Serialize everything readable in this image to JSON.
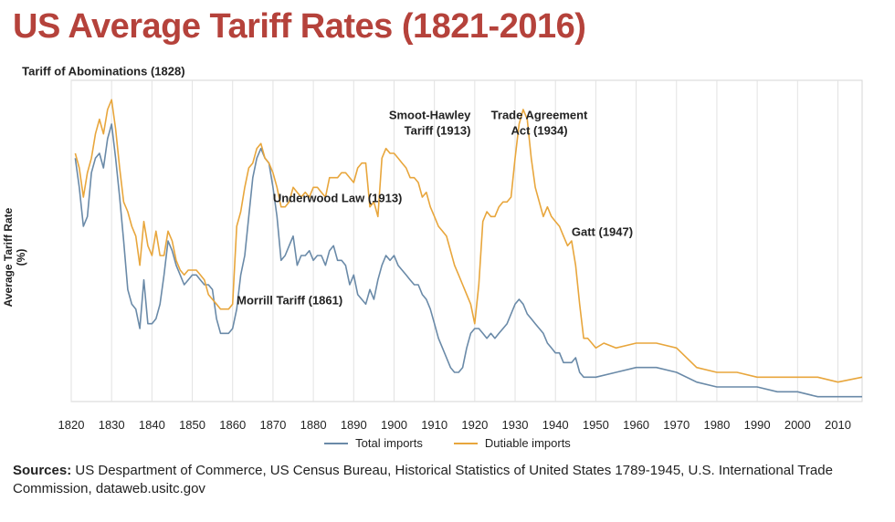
{
  "chart_data": {
    "type": "line",
    "title": "US Average Tariff Rates (1821-2016)",
    "ylabel": "Average Tariff Rate (%)",
    "xlabel": "",
    "xlim": [
      1820,
      2016
    ],
    "ylim": [
      0,
      66
    ],
    "x_ticks": [
      "1820",
      "1830",
      "1840",
      "1850",
      "1860",
      "1870",
      "1880",
      "1890",
      "1900",
      "1910",
      "1920",
      "1930",
      "1940",
      "1950",
      "1960",
      "1970",
      "1980",
      "1990",
      "2000",
      "2010"
    ],
    "grid": "vertical",
    "legend_position": "bottom",
    "series": [
      {
        "name": "Total imports",
        "color": "#6a8aa8",
        "points": [
          [
            1821,
            50
          ],
          [
            1822,
            44
          ],
          [
            1823,
            36
          ],
          [
            1824,
            38
          ],
          [
            1825,
            47
          ],
          [
            1826,
            50
          ],
          [
            1827,
            51
          ],
          [
            1828,
            48
          ],
          [
            1829,
            54
          ],
          [
            1830,
            57
          ],
          [
            1831,
            50
          ],
          [
            1832,
            42
          ],
          [
            1833,
            33
          ],
          [
            1834,
            23
          ],
          [
            1835,
            20
          ],
          [
            1836,
            19
          ],
          [
            1837,
            15
          ],
          [
            1838,
            25
          ],
          [
            1839,
            16
          ],
          [
            1840,
            16
          ],
          [
            1841,
            17
          ],
          [
            1842,
            20
          ],
          [
            1843,
            26
          ],
          [
            1844,
            33
          ],
          [
            1845,
            31
          ],
          [
            1846,
            28
          ],
          [
            1847,
            26
          ],
          [
            1848,
            24
          ],
          [
            1849,
            25
          ],
          [
            1850,
            26
          ],
          [
            1851,
            26
          ],
          [
            1852,
            25
          ],
          [
            1853,
            24
          ],
          [
            1854,
            24
          ],
          [
            1855,
            23
          ],
          [
            1856,
            17
          ],
          [
            1857,
            14
          ],
          [
            1858,
            14
          ],
          [
            1859,
            14
          ],
          [
            1860,
            15
          ],
          [
            1861,
            19
          ],
          [
            1862,
            26
          ],
          [
            1863,
            30
          ],
          [
            1864,
            38
          ],
          [
            1865,
            46
          ],
          [
            1866,
            50
          ],
          [
            1867,
            52
          ],
          [
            1868,
            50
          ],
          [
            1869,
            49
          ],
          [
            1870,
            44
          ],
          [
            1871,
            38
          ],
          [
            1872,
            29
          ],
          [
            1873,
            30
          ],
          [
            1874,
            32
          ],
          [
            1875,
            34
          ],
          [
            1876,
            28
          ],
          [
            1877,
            30
          ],
          [
            1878,
            30
          ],
          [
            1879,
            31
          ],
          [
            1880,
            29
          ],
          [
            1881,
            30
          ],
          [
            1882,
            30
          ],
          [
            1883,
            28
          ],
          [
            1884,
            31
          ],
          [
            1885,
            32
          ],
          [
            1886,
            29
          ],
          [
            1887,
            29
          ],
          [
            1888,
            28
          ],
          [
            1889,
            24
          ],
          [
            1890,
            26
          ],
          [
            1891,
            22
          ],
          [
            1892,
            21
          ],
          [
            1893,
            20
          ],
          [
            1894,
            23
          ],
          [
            1895,
            21
          ],
          [
            1896,
            25
          ],
          [
            1897,
            28
          ],
          [
            1898,
            30
          ],
          [
            1899,
            29
          ],
          [
            1900,
            30
          ],
          [
            1901,
            28
          ],
          [
            1902,
            27
          ],
          [
            1903,
            26
          ],
          [
            1904,
            25
          ],
          [
            1905,
            24
          ],
          [
            1906,
            24
          ],
          [
            1907,
            22
          ],
          [
            1908,
            21
          ],
          [
            1909,
            19
          ],
          [
            1910,
            16
          ],
          [
            1911,
            13
          ],
          [
            1912,
            11
          ],
          [
            1913,
            9
          ],
          [
            1914,
            7
          ],
          [
            1915,
            6
          ],
          [
            1916,
            6
          ],
          [
            1917,
            7
          ],
          [
            1918,
            11
          ],
          [
            1919,
            14
          ],
          [
            1920,
            15
          ],
          [
            1921,
            15
          ],
          [
            1922,
            14
          ],
          [
            1923,
            13
          ],
          [
            1924,
            14
          ],
          [
            1925,
            13
          ],
          [
            1926,
            14
          ],
          [
            1927,
            15
          ],
          [
            1928,
            16
          ],
          [
            1929,
            18
          ],
          [
            1930,
            20
          ],
          [
            1931,
            21
          ],
          [
            1932,
            20
          ],
          [
            1933,
            18
          ],
          [
            1934,
            17
          ],
          [
            1935,
            16
          ],
          [
            1936,
            15
          ],
          [
            1937,
            14
          ],
          [
            1938,
            12
          ],
          [
            1939,
            11
          ],
          [
            1940,
            10
          ],
          [
            1941,
            10
          ],
          [
            1942,
            8
          ],
          [
            1943,
            8
          ],
          [
            1944,
            8
          ],
          [
            1945,
            9
          ],
          [
            1946,
            6
          ],
          [
            1947,
            5
          ],
          [
            1948,
            5
          ],
          [
            1950,
            5
          ],
          [
            1955,
            6
          ],
          [
            1960,
            7
          ],
          [
            1965,
            7
          ],
          [
            1970,
            6
          ],
          [
            1975,
            4
          ],
          [
            1980,
            3
          ],
          [
            1985,
            3
          ],
          [
            1990,
            3
          ],
          [
            1995,
            2
          ],
          [
            2000,
            2
          ],
          [
            2005,
            1
          ],
          [
            2010,
            1
          ],
          [
            2016,
            1
          ]
        ]
      },
      {
        "name": "Dutiable imports",
        "color": "#e8a63c",
        "points": [
          [
            1821,
            51
          ],
          [
            1822,
            48
          ],
          [
            1823,
            42
          ],
          [
            1824,
            47
          ],
          [
            1825,
            50
          ],
          [
            1826,
            55
          ],
          [
            1827,
            58
          ],
          [
            1828,
            55
          ],
          [
            1829,
            60
          ],
          [
            1830,
            62
          ],
          [
            1831,
            56
          ],
          [
            1832,
            48
          ],
          [
            1833,
            41
          ],
          [
            1834,
            39
          ],
          [
            1835,
            36
          ],
          [
            1836,
            34
          ],
          [
            1837,
            28
          ],
          [
            1838,
            37
          ],
          [
            1839,
            32
          ],
          [
            1840,
            30
          ],
          [
            1841,
            35
          ],
          [
            1842,
            30
          ],
          [
            1843,
            30
          ],
          [
            1844,
            35
          ],
          [
            1845,
            33
          ],
          [
            1846,
            29
          ],
          [
            1847,
            27
          ],
          [
            1848,
            26
          ],
          [
            1849,
            27
          ],
          [
            1850,
            27
          ],
          [
            1851,
            27
          ],
          [
            1852,
            26
          ],
          [
            1853,
            25
          ],
          [
            1854,
            22
          ],
          [
            1855,
            21
          ],
          [
            1856,
            20
          ],
          [
            1857,
            19
          ],
          [
            1858,
            19
          ],
          [
            1859,
            19
          ],
          [
            1860,
            20
          ],
          [
            1861,
            36
          ],
          [
            1862,
            39
          ],
          [
            1863,
            44
          ],
          [
            1864,
            48
          ],
          [
            1865,
            49
          ],
          [
            1866,
            52
          ],
          [
            1867,
            53
          ],
          [
            1868,
            50
          ],
          [
            1869,
            49
          ],
          [
            1870,
            47
          ],
          [
            1871,
            44
          ],
          [
            1872,
            40
          ],
          [
            1873,
            40
          ],
          [
            1874,
            41
          ],
          [
            1875,
            44
          ],
          [
            1876,
            43
          ],
          [
            1877,
            42
          ],
          [
            1878,
            43
          ],
          [
            1879,
            42
          ],
          [
            1880,
            44
          ],
          [
            1881,
            44
          ],
          [
            1882,
            43
          ],
          [
            1883,
            42
          ],
          [
            1884,
            46
          ],
          [
            1885,
            46
          ],
          [
            1886,
            46
          ],
          [
            1887,
            47
          ],
          [
            1888,
            47
          ],
          [
            1889,
            46
          ],
          [
            1890,
            45
          ],
          [
            1891,
            48
          ],
          [
            1892,
            49
          ],
          [
            1893,
            49
          ],
          [
            1894,
            40
          ],
          [
            1895,
            41
          ],
          [
            1896,
            38
          ],
          [
            1897,
            50
          ],
          [
            1898,
            52
          ],
          [
            1899,
            51
          ],
          [
            1900,
            51
          ],
          [
            1901,
            50
          ],
          [
            1902,
            49
          ],
          [
            1903,
            48
          ],
          [
            1904,
            46
          ],
          [
            1905,
            46
          ],
          [
            1906,
            45
          ],
          [
            1907,
            42
          ],
          [
            1908,
            43
          ],
          [
            1909,
            40
          ],
          [
            1910,
            38
          ],
          [
            1911,
            36
          ],
          [
            1912,
            35
          ],
          [
            1913,
            34
          ],
          [
            1914,
            31
          ],
          [
            1915,
            28
          ],
          [
            1916,
            26
          ],
          [
            1917,
            24
          ],
          [
            1918,
            22
          ],
          [
            1919,
            20
          ],
          [
            1920,
            16
          ],
          [
            1921,
            24
          ],
          [
            1922,
            37
          ],
          [
            1923,
            39
          ],
          [
            1924,
            38
          ],
          [
            1925,
            38
          ],
          [
            1926,
            40
          ],
          [
            1927,
            41
          ],
          [
            1928,
            41
          ],
          [
            1929,
            42
          ],
          [
            1930,
            50
          ],
          [
            1931,
            57
          ],
          [
            1932,
            60
          ],
          [
            1933,
            58
          ],
          [
            1934,
            50
          ],
          [
            1935,
            44
          ],
          [
            1936,
            41
          ],
          [
            1937,
            38
          ],
          [
            1938,
            40
          ],
          [
            1939,
            38
          ],
          [
            1940,
            37
          ],
          [
            1941,
            36
          ],
          [
            1942,
            34
          ],
          [
            1943,
            32
          ],
          [
            1944,
            33
          ],
          [
            1945,
            28
          ],
          [
            1946,
            20
          ],
          [
            1947,
            13
          ],
          [
            1948,
            13
          ],
          [
            1949,
            12
          ],
          [
            1950,
            11
          ],
          [
            1952,
            12
          ],
          [
            1955,
            11
          ],
          [
            1960,
            12
          ],
          [
            1965,
            12
          ],
          [
            1970,
            11
          ],
          [
            1975,
            7
          ],
          [
            1980,
            6
          ],
          [
            1985,
            6
          ],
          [
            1990,
            5
          ],
          [
            1995,
            5
          ],
          [
            2000,
            5
          ],
          [
            2005,
            5
          ],
          [
            2010,
            4
          ],
          [
            2016,
            5
          ]
        ]
      }
    ],
    "annotations": [
      {
        "lines": [
          "Tariff of Abominations (1828)"
        ],
        "x": 1828,
        "y": 67,
        "anchor": "middle"
      },
      {
        "lines": [
          "Morrill Tariff (1861)"
        ],
        "x": 1861,
        "y": 20,
        "anchor": "start"
      },
      {
        "lines": [
          "Underwood Law (1913)"
        ],
        "x": 1886,
        "y": 41,
        "anchor": "middle"
      },
      {
        "lines": [
          "Smoot-Hawley",
          "Tariff (1913)"
        ],
        "x": 1919,
        "y": 58,
        "anchor": "end"
      },
      {
        "lines": [
          "Trade Agreement",
          "Act (1934)"
        ],
        "x": 1936,
        "y": 58,
        "anchor": "middle"
      },
      {
        "lines": [
          "Gatt (1947)"
        ],
        "x": 1944,
        "y": 34,
        "anchor": "start"
      }
    ]
  },
  "legend": [
    {
      "label": "Total imports",
      "color": "#6a8aa8"
    },
    {
      "label": "Dutiable imports",
      "color": "#e8a63c"
    }
  ],
  "sources": {
    "label": "Sources:",
    "text": "US Despartment of Commerce, US Census Bureau, Historical Statistics of United States 1789-1945, U.S. International Trade Commission, dataweb.usitc.gov"
  }
}
